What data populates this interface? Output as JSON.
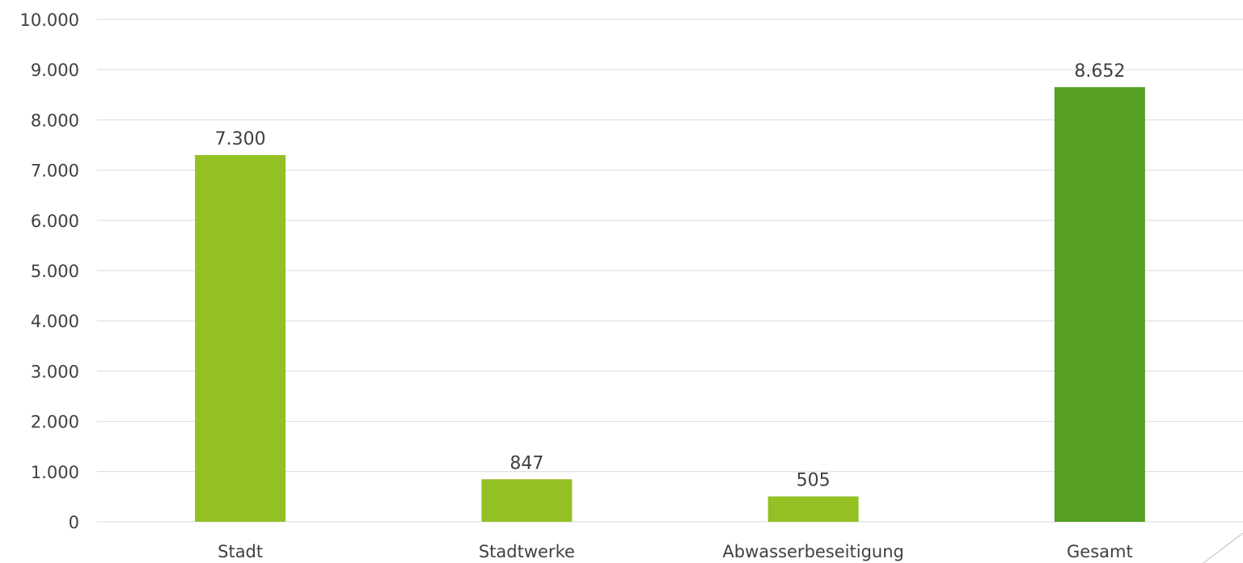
{
  "chart_data": {
    "type": "bar",
    "categories": [
      "Stadt",
      "Stadtwerke",
      "Abwasserbeseitigung",
      "Gesamt"
    ],
    "values": [
      7300,
      847,
      505,
      8652
    ],
    "data_labels": [
      "7.300",
      "847",
      "505",
      "8.652"
    ],
    "bar_colors": [
      "#93c123",
      "#93c123",
      "#93c123",
      "#55a022"
    ],
    "ylim": [
      0,
      10000
    ],
    "yticks": [
      0,
      1000,
      2000,
      3000,
      4000,
      5000,
      6000,
      7000,
      8000,
      9000,
      10000
    ],
    "ytick_labels": [
      "0",
      "1.000",
      "2.000",
      "3.000",
      "4.000",
      "5.000",
      "6.000",
      "7.000",
      "8.000",
      "9.000",
      "10.000"
    ],
    "grid": true,
    "legend": "none"
  }
}
